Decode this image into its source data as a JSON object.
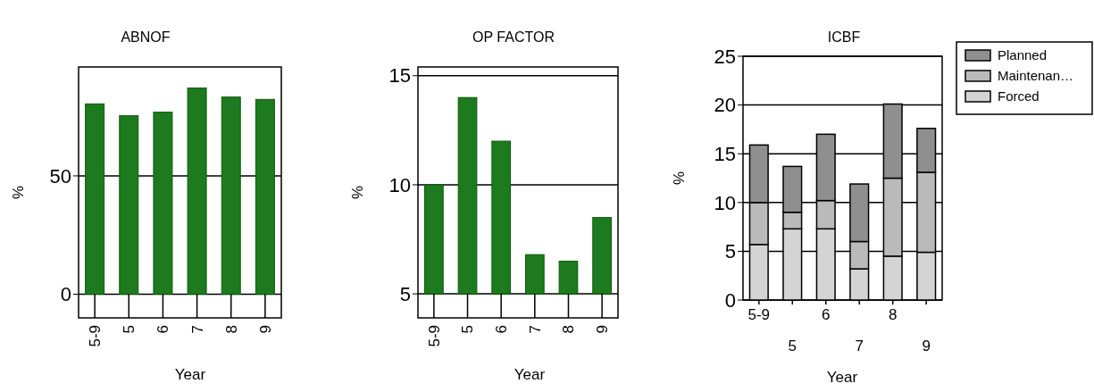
{
  "chart_data": [
    {
      "type": "bar",
      "title": "ABNOF",
      "xlabel": "Year",
      "ylabel": "%",
      "categories": [
        "5-9",
        "5",
        "6",
        "7",
        "8",
        "9"
      ],
      "values": [
        80.4,
        75.4,
        76.9,
        87.1,
        83.3,
        82.3
      ],
      "color": "#1e7a1e",
      "ylim": [
        -10,
        96
      ],
      "yticks": [
        0,
        50
      ],
      "grid": "y"
    },
    {
      "type": "bar",
      "title": "OP FACTOR",
      "xlabel": "Year",
      "ylabel": "%",
      "categories": [
        "5-9",
        "5",
        "6",
        "7",
        "8",
        "9"
      ],
      "base": [
        5,
        5,
        5,
        5,
        5,
        5
      ],
      "values": [
        5.0,
        9.0,
        7.0,
        1.8,
        1.5,
        3.5
      ],
      "color": "#1e7a1e",
      "ylim": [
        3.9,
        15.4
      ],
      "yticks": [
        5,
        10,
        15
      ],
      "grid": "y"
    },
    {
      "type": "bar",
      "title": "ICBF",
      "xlabel": "Year",
      "ylabel": "%",
      "categories": [
        "5-9",
        "5",
        "6",
        "7",
        "8",
        "9"
      ],
      "stacked": true,
      "ylim": [
        0,
        25
      ],
      "yticks": [
        0,
        5,
        10,
        15,
        20,
        25
      ],
      "grid": "y",
      "legend": "top right",
      "series": [
        {
          "name": "Forced",
          "color": "#d4d4d4",
          "values": [
            5.7,
            7.3,
            7.3,
            3.2,
            4.5,
            4.9
          ]
        },
        {
          "name": "Maintenan…",
          "color": "#bababa",
          "values": [
            4.3,
            1.7,
            2.9,
            2.8,
            8.0,
            8.2
          ]
        },
        {
          "name": "Planned",
          "color": "#8f8f8f",
          "values": [
            5.9,
            4.7,
            6.8,
            5.9,
            7.6,
            4.5
          ]
        }
      ]
    }
  ]
}
